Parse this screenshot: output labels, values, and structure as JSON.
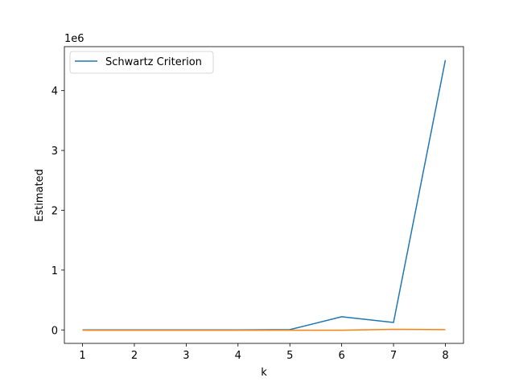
{
  "chart_data": {
    "type": "line",
    "x": [
      1,
      2,
      3,
      4,
      5,
      6,
      7,
      8
    ],
    "series": [
      {
        "name": "Schwartz Criterion",
        "color": "#1f77b4",
        "values": [
          0,
          0,
          0,
          0,
          5000,
          220000,
          125000,
          4510000
        ]
      },
      {
        "name": "",
        "color": "#ff7f0e",
        "values": [
          -5000,
          -5000,
          -5000,
          -5000,
          -5000,
          -5000,
          10000,
          5000
        ]
      }
    ],
    "xlabel": "k",
    "ylabel": "Estimated",
    "offset_text": "1e6",
    "xlim": [
      0.65,
      8.35
    ],
    "ylim": [
      -225000,
      4735000
    ],
    "xticks": [
      1,
      2,
      3,
      4,
      5,
      6,
      7,
      8
    ],
    "xtick_labels": [
      "1",
      "2",
      "3",
      "4",
      "5",
      "6",
      "7",
      "8"
    ],
    "yticks": [
      0,
      1000000,
      2000000,
      3000000,
      4000000
    ],
    "ytick_labels": [
      "0",
      "1",
      "2",
      "3",
      "4"
    ],
    "grid": false,
    "legend_position": "top-left"
  }
}
